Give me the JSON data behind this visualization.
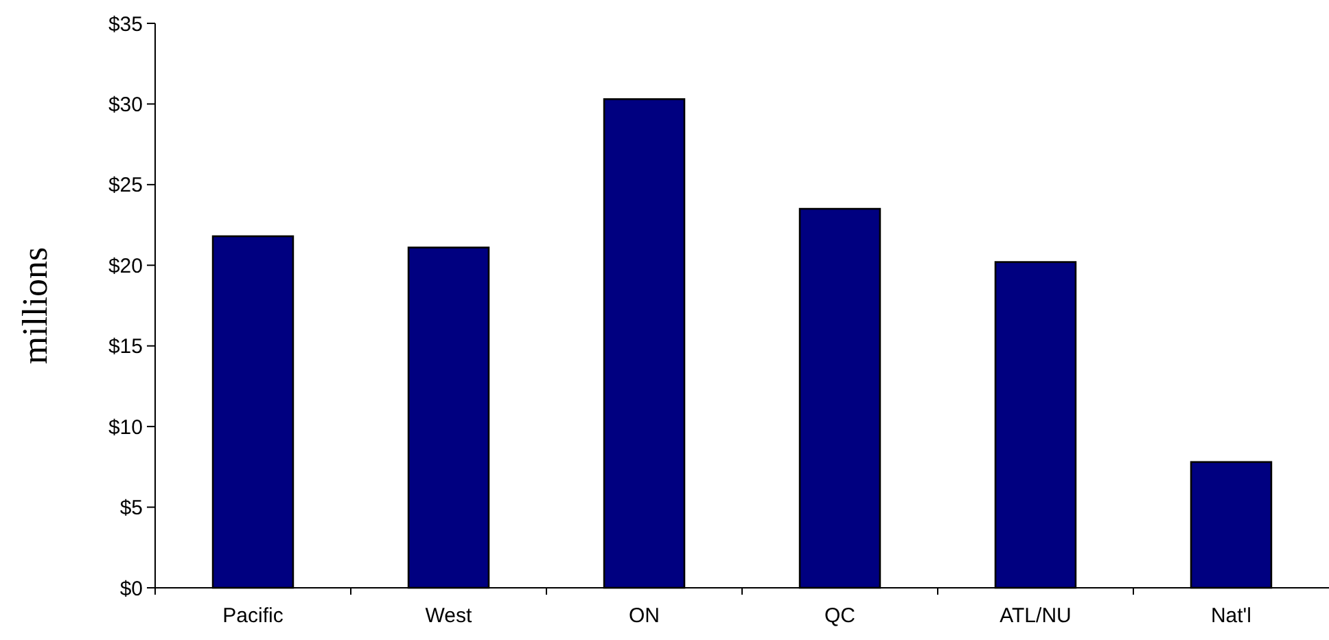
{
  "chart_data": {
    "type": "bar",
    "ylabel": "millions",
    "categories": [
      "Pacific",
      "West",
      "ON",
      "QC",
      "ATL/NU",
      "Nat'l"
    ],
    "values": [
      21.8,
      21.1,
      30.3,
      23.5,
      20.2,
      7.8
    ],
    "color": "#000080",
    "ylim": [
      0,
      35
    ],
    "yticks": [
      {
        "value": 0,
        "label": "$0"
      },
      {
        "value": 5,
        "label": "$5"
      },
      {
        "value": 10,
        "label": "$10"
      },
      {
        "value": 15,
        "label": "$15"
      },
      {
        "value": 20,
        "label": "$20"
      },
      {
        "value": 25,
        "label": "$25"
      },
      {
        "value": 30,
        "label": "$30"
      },
      {
        "value": 35,
        "label": "$35"
      }
    ],
    "grid": false
  }
}
